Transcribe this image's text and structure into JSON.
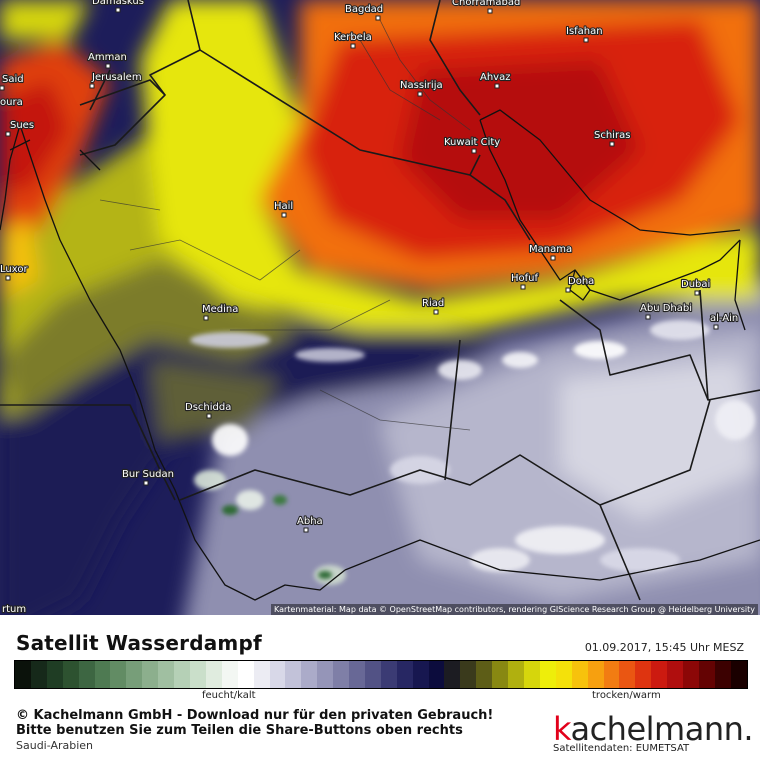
{
  "map": {
    "attribution": "Kartenmaterial: Map data © OpenStreetMap contributors, rendering GIScience Research Group @ Heidelberg University",
    "cities": [
      {
        "name": "Damaskus"
      },
      {
        "name": "Bagdad"
      },
      {
        "name": "Chorramabad"
      },
      {
        "name": "Kerbela"
      },
      {
        "name": "Isfahan"
      },
      {
        "name": "Amman"
      },
      {
        "name": "Jerusalem"
      },
      {
        "name": "Said"
      },
      {
        "name": "Ahvaz"
      },
      {
        "name": "Nassirija"
      },
      {
        "name": "Sues"
      },
      {
        "name": "Schiras"
      },
      {
        "name": "Kuwait City"
      },
      {
        "name": "Hail"
      },
      {
        "name": "Manama"
      },
      {
        "name": "Hofuf"
      },
      {
        "name": "Doha"
      },
      {
        "name": "Luxor"
      },
      {
        "name": "Dubai"
      },
      {
        "name": "Riad"
      },
      {
        "name": "Medina"
      },
      {
        "name": "Abu Dhabi"
      },
      {
        "name": "al-Ain"
      },
      {
        "name": "Dschidda"
      },
      {
        "name": "Bur Sudan"
      },
      {
        "name": "Abha"
      },
      {
        "name": "rtum"
      },
      {
        "name": "oura"
      }
    ]
  },
  "footer": {
    "title": "Satellit Wasserdampf",
    "timestamp": "01.09.2017, 15:45 Uhr MESZ",
    "scale_left_label": "feucht/kalt",
    "scale_right_label": "trocken/warm",
    "copyright_line1": "© Kachelmann GmbH - Download nur für den privaten Gebrauch!",
    "copyright_line2": "Bitte benutzen Sie zum Teilen die Share-Buttons oben rechts",
    "region": "Saudi-Arabien",
    "logo_k": "k",
    "logo_rest": "achelmann.",
    "data_source": "Satellitendaten: EUMETSAT"
  },
  "colors": {
    "scale": [
      "#0b120b",
      "#16291a",
      "#1f3d24",
      "#2d5230",
      "#3d6642",
      "#4e7a52",
      "#628c64",
      "#779e79",
      "#8caf8d",
      "#a0bfa1",
      "#b5d0b6",
      "#cadfca",
      "#e0ecdf",
      "#f3f7f3",
      "#ffffff",
      "#ececf3",
      "#d8d8e8",
      "#c2c2d9",
      "#ababc9",
      "#9595b8",
      "#7f7fa7",
      "#686896",
      "#525285",
      "#3b3b74",
      "#272763",
      "#171750",
      "#0c0c3d",
      "#1c1c22",
      "#3a3a1c",
      "#5d5d17",
      "#888812",
      "#b0b00f",
      "#d6d60c",
      "#eeee0a",
      "#f4e10a",
      "#f7c20c",
      "#f7a00f",
      "#f27c12",
      "#ea5612",
      "#de3410",
      "#cc1a10",
      "#b00e0e",
      "#8c0707",
      "#640303",
      "#3c0101",
      "#1a0000"
    ]
  }
}
